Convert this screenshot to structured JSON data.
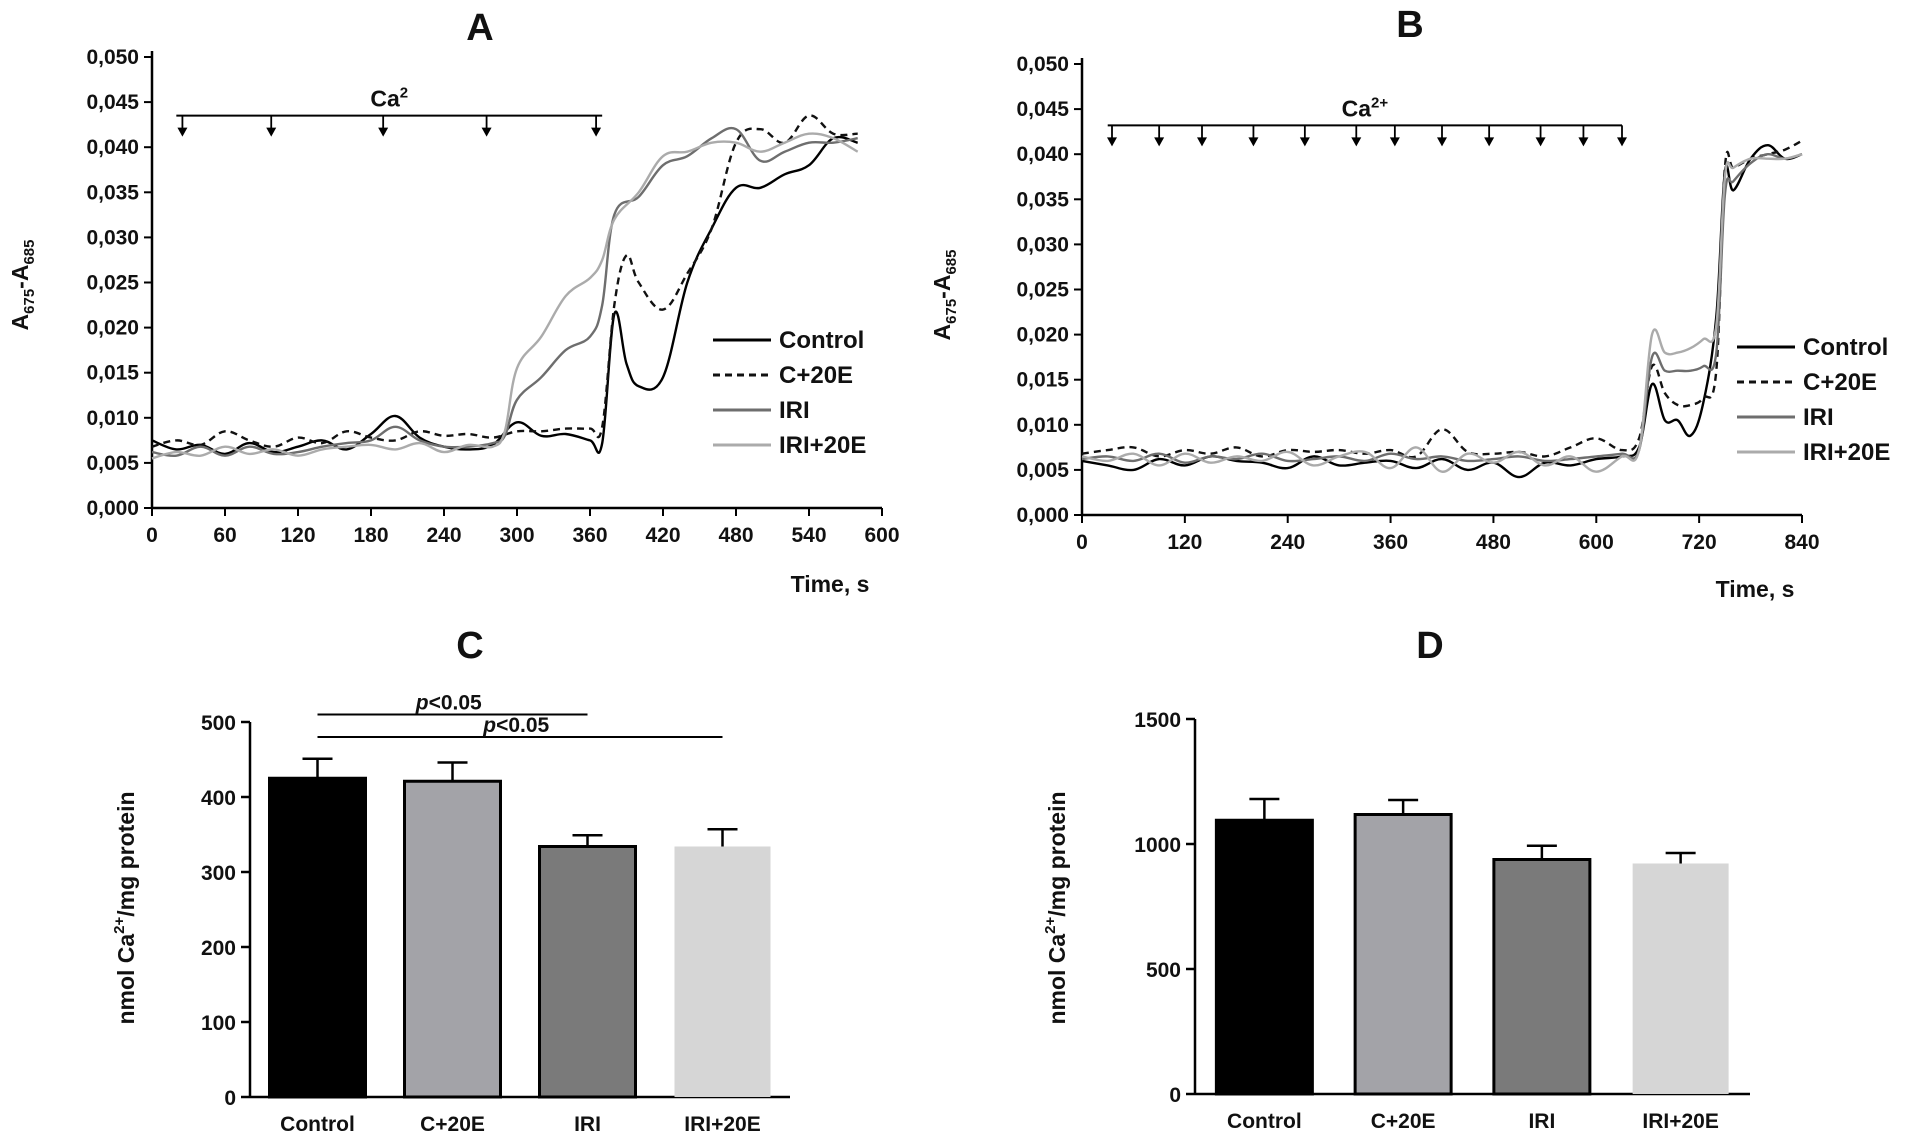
{
  "figure": {
    "panels": [
      "A",
      "B",
      "C",
      "D"
    ]
  },
  "chart_data": [
    {
      "id": "A",
      "type": "line",
      "title": "A",
      "xlabel": "Time, s",
      "ylabel_base": "A",
      "ylabel_sub1": "675",
      "ylabel_dash": "-A",
      "ylabel_sub2": "685",
      "xlim": [
        0,
        600
      ],
      "ylim": [
        0,
        0.05
      ],
      "xticks": [
        0,
        60,
        120,
        180,
        240,
        300,
        360,
        420,
        480,
        540,
        600
      ],
      "xtick_labels": [
        "0",
        "60",
        "120",
        "180",
        "240",
        "300",
        "360",
        "420",
        "480",
        "540",
        "600"
      ],
      "yticks": [
        0,
        0.005,
        0.01,
        0.015,
        0.02,
        0.025,
        0.03,
        0.035,
        0.04,
        0.045,
        0.05
      ],
      "ytick_labels": [
        "0,000",
        "0,005",
        "0,010",
        "0,015",
        "0,020",
        "0,025",
        "0,030",
        "0,035",
        "0,040",
        "0,045",
        "0,050"
      ],
      "annotation": {
        "label": "Ca",
        "superscript": "2",
        "line_y": 0.0435,
        "x_start": 20,
        "x_end": 370,
        "arrows_x": [
          25,
          98,
          190,
          275,
          365
        ]
      },
      "legend": [
        "Control",
        "C+20E",
        "IRI",
        "IRI+20E"
      ],
      "series": [
        {
          "name": "Control",
          "style": "solid",
          "color": "#000000",
          "x": [
            0,
            20,
            40,
            60,
            80,
            100,
            120,
            140,
            160,
            180,
            200,
            220,
            240,
            260,
            280,
            300,
            320,
            340,
            360,
            370,
            380,
            390,
            400,
            420,
            440,
            460,
            480,
            500,
            520,
            540,
            560,
            580
          ],
          "y": [
            0.0075,
            0.0065,
            0.007,
            0.006,
            0.0072,
            0.0062,
            0.0068,
            0.0075,
            0.0065,
            0.0082,
            0.0102,
            0.0078,
            0.0068,
            0.0065,
            0.007,
            0.0095,
            0.008,
            0.0082,
            0.0075,
            0.0072,
            0.0215,
            0.016,
            0.0135,
            0.0145,
            0.025,
            0.031,
            0.0355,
            0.0355,
            0.037,
            0.038,
            0.041,
            0.0405
          ]
        },
        {
          "name": "C+20E",
          "style": "dashed",
          "color": "#111111",
          "x": [
            0,
            20,
            40,
            60,
            80,
            100,
            120,
            140,
            160,
            180,
            200,
            220,
            240,
            260,
            280,
            300,
            320,
            340,
            360,
            370,
            380,
            390,
            400,
            420,
            440,
            460,
            480,
            500,
            520,
            540,
            560,
            580
          ],
          "y": [
            0.0068,
            0.0075,
            0.007,
            0.0085,
            0.0075,
            0.0068,
            0.0078,
            0.0072,
            0.0085,
            0.0078,
            0.0075,
            0.0085,
            0.008,
            0.0082,
            0.0078,
            0.0085,
            0.0085,
            0.0088,
            0.0088,
            0.009,
            0.0225,
            0.028,
            0.025,
            0.022,
            0.026,
            0.031,
            0.0405,
            0.042,
            0.0405,
            0.0435,
            0.0415,
            0.0415
          ]
        },
        {
          "name": "IRI",
          "style": "solid",
          "color": "#6e6e6e",
          "x": [
            0,
            20,
            40,
            60,
            80,
            100,
            120,
            140,
            160,
            180,
            200,
            220,
            240,
            260,
            280,
            290,
            300,
            320,
            340,
            360,
            370,
            380,
            400,
            420,
            440,
            460,
            480,
            500,
            520,
            540,
            560,
            580
          ],
          "y": [
            0.0062,
            0.0058,
            0.0068,
            0.0058,
            0.0068,
            0.006,
            0.0062,
            0.0068,
            0.0072,
            0.0075,
            0.009,
            0.0075,
            0.0068,
            0.0068,
            0.0072,
            0.008,
            0.012,
            0.0145,
            0.0175,
            0.019,
            0.0225,
            0.0325,
            0.0345,
            0.038,
            0.039,
            0.041,
            0.042,
            0.0385,
            0.0395,
            0.0405,
            0.0405,
            0.041
          ]
        },
        {
          "name": "IRI+20E",
          "style": "solid",
          "color": "#ababab",
          "x": [
            0,
            20,
            40,
            60,
            80,
            100,
            120,
            140,
            160,
            180,
            200,
            220,
            240,
            260,
            280,
            290,
            300,
            320,
            340,
            360,
            370,
            380,
            400,
            420,
            440,
            460,
            480,
            500,
            520,
            540,
            560,
            580
          ],
          "y": [
            0.0055,
            0.0062,
            0.0058,
            0.0068,
            0.006,
            0.0065,
            0.0058,
            0.0065,
            0.0068,
            0.007,
            0.0065,
            0.0072,
            0.0062,
            0.007,
            0.0068,
            0.0085,
            0.0155,
            0.019,
            0.0235,
            0.0255,
            0.0275,
            0.032,
            0.035,
            0.039,
            0.0395,
            0.0405,
            0.0405,
            0.0395,
            0.0405,
            0.0415,
            0.041,
            0.0395
          ]
        }
      ]
    },
    {
      "id": "B",
      "type": "line",
      "title": "B",
      "xlabel": "Time, s",
      "ylabel_base": "A",
      "ylabel_sub1": "675",
      "ylabel_dash": "-A",
      "ylabel_sub2": "685",
      "xlim": [
        0,
        840
      ],
      "ylim": [
        0,
        0.05
      ],
      "xticks": [
        0,
        120,
        240,
        360,
        480,
        600,
        720,
        840
      ],
      "xtick_labels": [
        "0",
        "120",
        "240",
        "360",
        "480",
        "600",
        "720",
        "840"
      ],
      "yticks": [
        0,
        0.005,
        0.01,
        0.015,
        0.02,
        0.025,
        0.03,
        0.035,
        0.04,
        0.045,
        0.05
      ],
      "ytick_labels": [
        "0,000",
        "0,005",
        "0,010",
        "0,015",
        "0,020",
        "0,025",
        "0,030",
        "0,035",
        "0,040",
        "0,045",
        "0,050"
      ],
      "annotation": {
        "label": "Ca",
        "superscript": "2+",
        "line_y": 0.0432,
        "x_start": 30,
        "x_end": 630,
        "arrows_x": [
          35,
          90,
          140,
          200,
          260,
          320,
          365,
          420,
          475,
          535,
          585,
          630
        ]
      },
      "legend": [
        "Control",
        "C+20E",
        "IRI",
        "IRI+20E"
      ],
      "series": [
        {
          "name": "Control",
          "style": "solid",
          "color": "#000000",
          "x": [
            0,
            30,
            60,
            90,
            120,
            150,
            180,
            210,
            240,
            270,
            300,
            330,
            360,
            390,
            420,
            450,
            480,
            510,
            540,
            570,
            600,
            630,
            650,
            665,
            680,
            695,
            710,
            725,
            740,
            750,
            760,
            780,
            800,
            820,
            840
          ],
          "y": [
            0.006,
            0.0055,
            0.005,
            0.0062,
            0.0055,
            0.0065,
            0.006,
            0.0058,
            0.0052,
            0.0065,
            0.0055,
            0.0058,
            0.006,
            0.0052,
            0.0062,
            0.005,
            0.0058,
            0.0042,
            0.0058,
            0.0055,
            0.0062,
            0.0065,
            0.0075,
            0.0145,
            0.0105,
            0.0105,
            0.0088,
            0.0125,
            0.022,
            0.038,
            0.036,
            0.0395,
            0.041,
            0.0395,
            0.04
          ]
        },
        {
          "name": "C+20E",
          "style": "dashed",
          "color": "#111111",
          "x": [
            0,
            30,
            60,
            90,
            120,
            150,
            180,
            210,
            240,
            270,
            300,
            330,
            360,
            390,
            420,
            450,
            480,
            510,
            540,
            570,
            600,
            630,
            650,
            665,
            680,
            695,
            710,
            725,
            740,
            750,
            760,
            780,
            800,
            820,
            840
          ],
          "y": [
            0.0068,
            0.0072,
            0.0075,
            0.0065,
            0.0072,
            0.0068,
            0.0075,
            0.0065,
            0.0072,
            0.007,
            0.0072,
            0.0068,
            0.0072,
            0.0065,
            0.0095,
            0.007,
            0.0068,
            0.007,
            0.0065,
            0.0075,
            0.0085,
            0.0072,
            0.0085,
            0.0165,
            0.0135,
            0.0122,
            0.0122,
            0.013,
            0.016,
            0.0385,
            0.0385,
            0.0395,
            0.04,
            0.0405,
            0.0415
          ]
        },
        {
          "name": "IRI",
          "style": "solid",
          "color": "#6e6e6e",
          "x": [
            0,
            30,
            60,
            90,
            120,
            150,
            180,
            210,
            240,
            270,
            300,
            330,
            360,
            390,
            420,
            450,
            480,
            510,
            540,
            570,
            600,
            630,
            650,
            665,
            680,
            695,
            710,
            725,
            740,
            750,
            760,
            780,
            800,
            820,
            840
          ],
          "y": [
            0.0062,
            0.0065,
            0.006,
            0.0068,
            0.0058,
            0.0065,
            0.0062,
            0.0068,
            0.006,
            0.0062,
            0.0065,
            0.006,
            0.0068,
            0.0062,
            0.0065,
            0.006,
            0.0062,
            0.0065,
            0.006,
            0.0062,
            0.0065,
            0.0068,
            0.0072,
            0.0175,
            0.016,
            0.016,
            0.016,
            0.0165,
            0.018,
            0.0355,
            0.037,
            0.039,
            0.04,
            0.0395,
            0.04
          ]
        },
        {
          "name": "IRI+20E",
          "style": "solid",
          "color": "#ababab",
          "x": [
            0,
            30,
            60,
            90,
            120,
            150,
            180,
            210,
            240,
            270,
            300,
            330,
            360,
            390,
            420,
            450,
            480,
            510,
            540,
            570,
            600,
            630,
            650,
            665,
            680,
            695,
            710,
            725,
            740,
            750,
            760,
            780,
            800,
            820,
            840
          ],
          "y": [
            0.0065,
            0.006,
            0.0068,
            0.0055,
            0.0068,
            0.0058,
            0.0065,
            0.006,
            0.007,
            0.0055,
            0.0065,
            0.007,
            0.0052,
            0.0075,
            0.0048,
            0.0068,
            0.0058,
            0.007,
            0.0055,
            0.0065,
            0.0048,
            0.0065,
            0.0072,
            0.02,
            0.018,
            0.018,
            0.0185,
            0.0195,
            0.021,
            0.0375,
            0.0385,
            0.0395,
            0.0395,
            0.0395,
            0.04
          ]
        }
      ]
    },
    {
      "id": "C",
      "type": "bar",
      "title": "C",
      "ylabel_prefix": "nmol Ca",
      "ylabel_sup": "2+",
      "ylabel_suffix": "/mg protein",
      "ylim": [
        0,
        500
      ],
      "yticks": [
        0,
        100,
        200,
        300,
        400,
        500
      ],
      "ytick_labels": [
        "0",
        "100",
        "200",
        "300",
        "400",
        "500"
      ],
      "categories": [
        "Control",
        "C+20E",
        "IRI",
        "IRI+20E"
      ],
      "values": [
        425,
        421,
        334,
        334
      ],
      "errors": [
        26,
        25,
        15,
        23
      ],
      "colors": [
        "#000000",
        "#a3a3a8",
        "#7a7a7a",
        "#d6d6d6"
      ],
      "significance": [
        {
          "from": 0,
          "to": 2,
          "label_italic": "p",
          "label_rest": "<0.05",
          "level": 510
        },
        {
          "from": 0,
          "to": 3,
          "label_italic": "p",
          "label_rest": "<0.05",
          "level": 480
        }
      ]
    },
    {
      "id": "D",
      "type": "bar",
      "title": "D",
      "ylabel_prefix": "nmol Ca",
      "ylabel_sup": "2+",
      "ylabel_suffix": "/mg protein",
      "ylim": [
        0,
        1500
      ],
      "yticks": [
        0,
        500,
        1000,
        1500
      ],
      "ytick_labels": [
        "0",
        "500",
        "1000",
        "1500"
      ],
      "categories": [
        "Control",
        "C+20E",
        "IRI",
        "IRI+20E"
      ],
      "values": [
        1095,
        1118,
        938,
        922
      ],
      "errors": [
        85,
        58,
        55,
        42
      ],
      "colors": [
        "#000000",
        "#a3a3a8",
        "#7a7a7a",
        "#d6d6d6"
      ],
      "significance": []
    }
  ]
}
